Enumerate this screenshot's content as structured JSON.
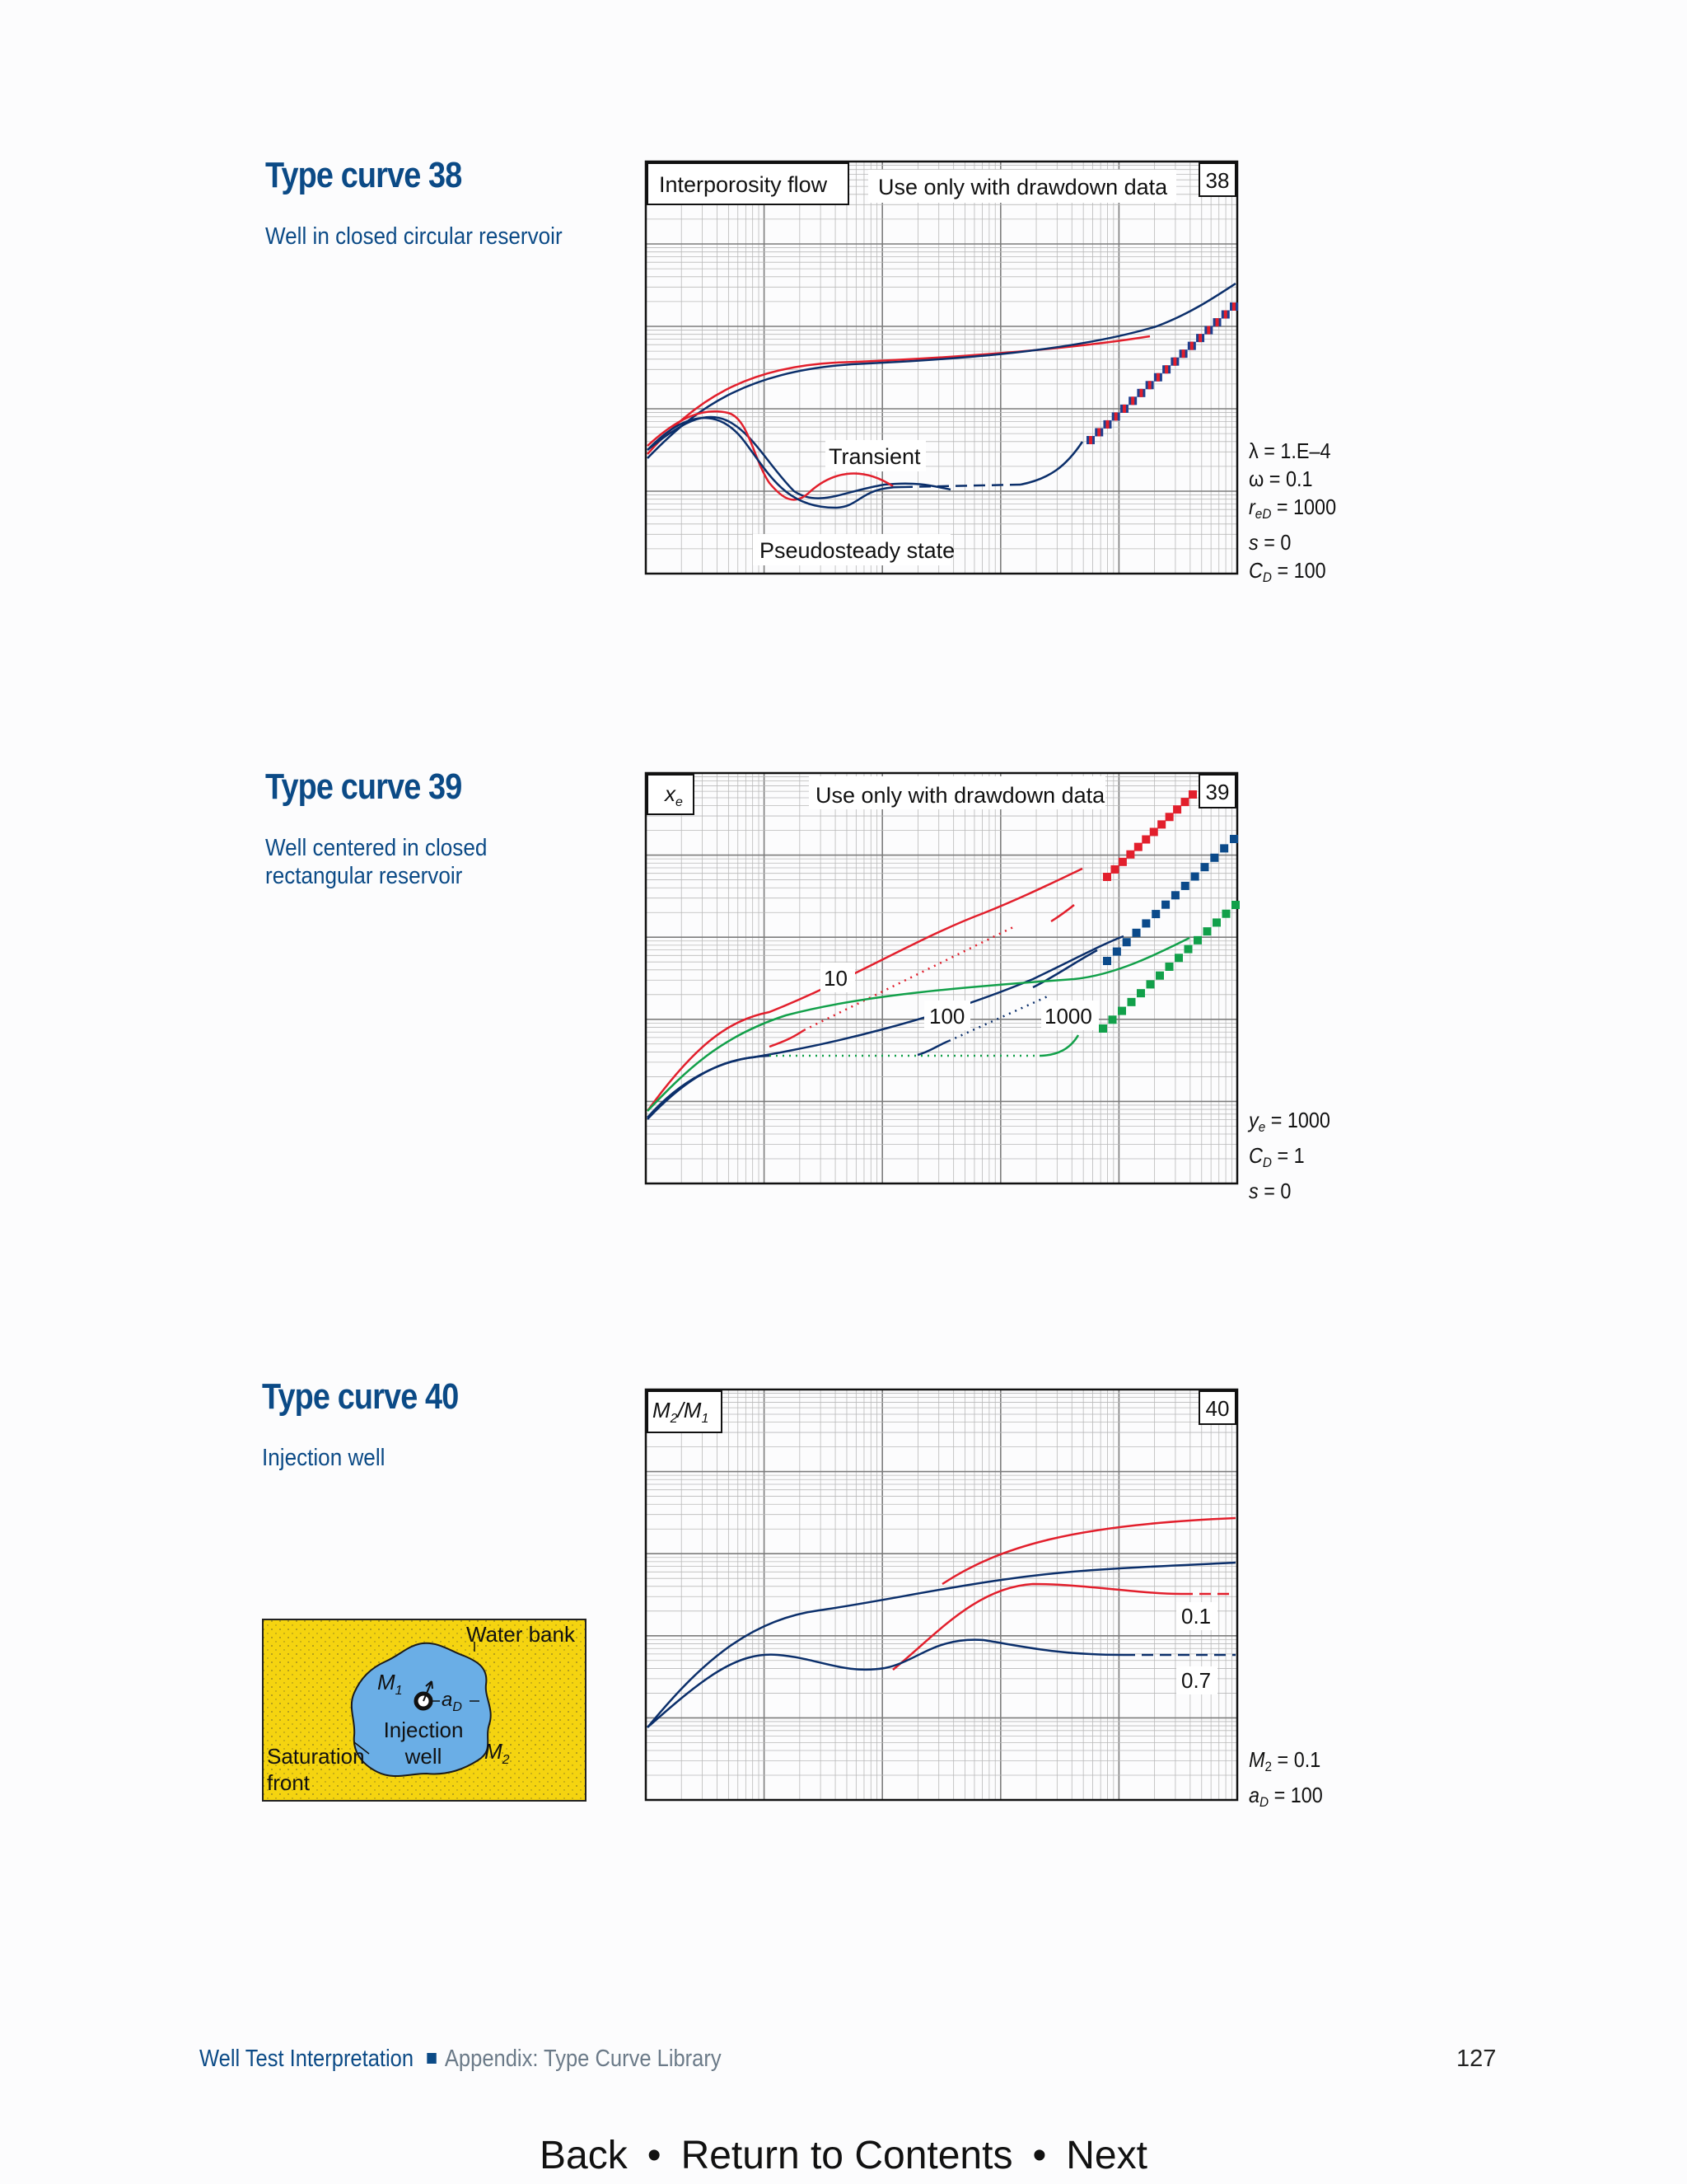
{
  "curves": [
    {
      "title": "Type curve 38",
      "subtitle": "Well in closed circular reservoir",
      "number": "38",
      "box_left": "Interporosity flow",
      "box_note": "Use only with drawdown data",
      "labels": [
        "Transient",
        "Pseudosteady state"
      ],
      "params": {
        "lambda": "λ = 1.E–4",
        "omega": "ω = 0.1",
        "reD_value": " = 1000",
        "s_value": " = 0",
        "CD_value": " = 100"
      }
    },
    {
      "title": "Type curve 39",
      "subtitle": "Well centered in closed rectangular reservoir",
      "number": "39",
      "box_left": "x",
      "box_left_sub": "e",
      "box_note": "Use only with drawdown data",
      "labels": [
        "10",
        "100",
        "1000"
      ],
      "params": {
        "ye_value": " = 1000",
        "CD_value": " = 1",
        "s_value": " = 0"
      }
    },
    {
      "title": "Type curve 40",
      "subtitle": "Injection well",
      "number": "40",
      "box_left": "M",
      "box_left_sub1": "2",
      "box_mid": "/M",
      "box_left_sub2": "1",
      "labels": [
        "0.1",
        "0.7"
      ],
      "params": {
        "M2_value": " = 0.1",
        "aD_value": " = 100"
      }
    }
  ],
  "diagram": {
    "water_bank": "Water bank",
    "m1": "M",
    "m1_sub": "1",
    "aD": "a",
    "aD_sub": "D",
    "injection": "Injection",
    "well": "well",
    "m2": "M",
    "m2_sub": "2",
    "saturation": "Saturation",
    "front": "front"
  },
  "footer": {
    "book": "Well Test Interpretation",
    "chapter": "Appendix: Type Curve Library",
    "page": "127"
  },
  "nav": {
    "back": "Back",
    "contents": "Return to Contents",
    "next": "Next"
  },
  "colors": {
    "title_blue": "#0b4a86",
    "curve_red": "#e21f2c",
    "curve_navy": "#0b2f6b",
    "curve_green": "#12a04a",
    "sand": "#f5d410",
    "blob": "#6aaee6"
  }
}
